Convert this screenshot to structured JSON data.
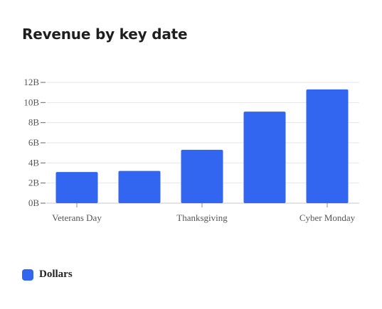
{
  "chart_data": {
    "type": "bar",
    "title": "Revenue by key date",
    "categories": [
      "Veterans Day",
      "",
      "Thanksgiving",
      "",
      "Cyber Monday"
    ],
    "series": [
      {
        "name": "Dollars",
        "values": [
          3.1,
          3.2,
          5.3,
          9.1,
          11.3
        ],
        "color": "#3366f0"
      }
    ],
    "yticks": [
      "0B",
      "2B",
      "4B",
      "6B",
      "8B",
      "10B",
      "12B"
    ],
    "ylim": [
      0,
      12
    ],
    "grid": true,
    "legend_position": "bottom-left"
  }
}
